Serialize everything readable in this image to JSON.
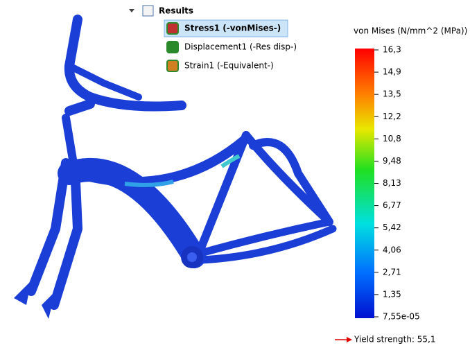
{
  "tree": {
    "root": {
      "label": "Results"
    },
    "items": [
      {
        "label": "Stress1 (-vonMises-)",
        "selected": true
      },
      {
        "label": "Displacement1 (-Res disp-)",
        "selected": false
      },
      {
        "label": "Strain1 (-Equivalent-)",
        "selected": false
      }
    ]
  },
  "legend": {
    "title": "von Mises (N/mm^2 (MPa))",
    "ticks": [
      "16,3",
      "14,9",
      "13,5",
      "12,2",
      "10,8",
      "9,48",
      "8,13",
      "6,77",
      "5,42",
      "4,06",
      "2,71",
      "1,35",
      "7,55e-05"
    ],
    "yield": "Yield strength: 55,1"
  }
}
